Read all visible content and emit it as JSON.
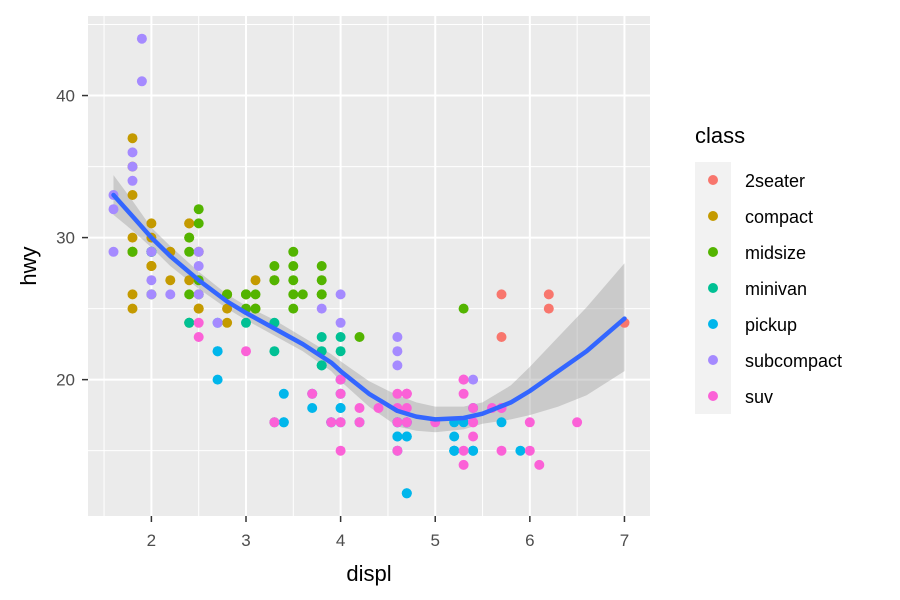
{
  "chart_data": {
    "type": "scatter",
    "xlabel": "displ",
    "ylabel": "hwy",
    "xlim": [
      1.33,
      7.27
    ],
    "ylim": [
      10.4,
      45.6
    ],
    "x_ticks": [
      2,
      3,
      4,
      5,
      6,
      7
    ],
    "y_ticks": [
      20,
      30,
      40
    ],
    "grid": true,
    "legend": {
      "title": "class",
      "placement": "right"
    },
    "series": [
      {
        "name": "2seater",
        "color": "#F8766D",
        "points": [
          [
            5.7,
            26
          ],
          [
            5.7,
            23
          ],
          [
            6.2,
            26
          ],
          [
            6.2,
            25
          ],
          [
            7.0,
            24
          ]
        ]
      },
      {
        "name": "compact",
        "color": "#C49A00",
        "points": [
          [
            1.8,
            29
          ],
          [
            1.8,
            29
          ],
          [
            2.0,
            31
          ],
          [
            2.0,
            30
          ],
          [
            2.8,
            26
          ],
          [
            2.8,
            26
          ],
          [
            3.1,
            27
          ],
          [
            1.8,
            26
          ],
          [
            1.8,
            25
          ],
          [
            2.0,
            28
          ],
          [
            2.0,
            28
          ],
          [
            2.8,
            24
          ],
          [
            2.8,
            25
          ],
          [
            3.1,
            25
          ],
          [
            2.2,
            29
          ],
          [
            2.2,
            27
          ],
          [
            2.4,
            31
          ],
          [
            2.4,
            31
          ],
          [
            3.0,
            26
          ],
          [
            3.3,
            27
          ],
          [
            1.8,
            37
          ],
          [
            1.8,
            35
          ],
          [
            1.8,
            33
          ],
          [
            2.0,
            29
          ],
          [
            2.0,
            29
          ],
          [
            2.0,
            28
          ],
          [
            2.5,
            25
          ],
          [
            2.4,
            27
          ],
          [
            2.4,
            30
          ],
          [
            2.5,
            25
          ],
          [
            2.5,
            29
          ],
          [
            1.8,
            30
          ]
        ]
      },
      {
        "name": "midsize",
        "color": "#53B400",
        "points": [
          [
            2.8,
            26
          ],
          [
            3.1,
            26
          ],
          [
            3.1,
            25
          ],
          [
            2.4,
            26
          ],
          [
            2.4,
            29
          ],
          [
            2.5,
            32
          ],
          [
            2.5,
            31
          ],
          [
            2.4,
            30
          ],
          [
            3.3,
            28
          ],
          [
            3.5,
            29
          ],
          [
            3.5,
            28
          ],
          [
            3.0,
            26
          ],
          [
            3.0,
            25
          ],
          [
            3.5,
            26
          ],
          [
            3.5,
            27
          ],
          [
            3.8,
            26
          ],
          [
            3.8,
            27
          ],
          [
            3.8,
            28
          ],
          [
            3.5,
            25
          ],
          [
            3.6,
            26
          ],
          [
            3.3,
            27
          ],
          [
            1.8,
            29
          ],
          [
            2.0,
            26
          ],
          [
            2.4,
            24
          ],
          [
            2.5,
            26
          ],
          [
            2.5,
            27
          ],
          [
            3.0,
            26
          ],
          [
            3.8,
            26
          ],
          [
            4.2,
            23
          ],
          [
            5.3,
            25
          ],
          [
            2.0,
            29
          ]
        ]
      },
      {
        "name": "minivan",
        "color": "#00C094",
        "points": [
          [
            2.4,
            24
          ],
          [
            3.0,
            24
          ],
          [
            3.3,
            22
          ],
          [
            3.3,
            24
          ],
          [
            3.8,
            22
          ],
          [
            3.8,
            21
          ],
          [
            3.8,
            23
          ],
          [
            4.0,
            23
          ],
          [
            3.3,
            17
          ],
          [
            3.8,
            21
          ],
          [
            4.0,
            22
          ]
        ]
      },
      {
        "name": "pickup",
        "color": "#00B6EB",
        "points": [
          [
            3.7,
            19
          ],
          [
            3.7,
            18
          ],
          [
            3.9,
            17
          ],
          [
            3.9,
            17
          ],
          [
            4.7,
            16
          ],
          [
            4.7,
            17
          ],
          [
            4.7,
            17
          ],
          [
            5.2,
            15
          ],
          [
            5.2,
            15
          ],
          [
            5.7,
            17
          ],
          [
            5.9,
            15
          ],
          [
            4.7,
            12
          ],
          [
            4.7,
            17
          ],
          [
            4.7,
            16
          ],
          [
            4.7,
            12
          ],
          [
            5.2,
            15
          ],
          [
            2.7,
            20
          ],
          [
            2.7,
            22
          ],
          [
            2.7,
            22
          ],
          [
            3.4,
            17
          ],
          [
            3.4,
            19
          ],
          [
            4.0,
            18
          ],
          [
            4.0,
            18
          ],
          [
            4.0,
            19
          ],
          [
            4.0,
            20
          ],
          [
            4.6,
            17
          ],
          [
            4.6,
            16
          ],
          [
            4.6,
            17
          ],
          [
            4.6,
            16
          ],
          [
            5.4,
            15
          ],
          [
            5.4,
            18
          ],
          [
            5.3,
            17
          ],
          [
            5.4,
            15
          ],
          [
            4.0,
            17
          ],
          [
            3.4,
            17
          ],
          [
            4.2,
            17
          ],
          [
            4.6,
            15
          ],
          [
            5.2,
            16
          ],
          [
            5.2,
            17
          ],
          [
            2.0,
            29
          ],
          [
            2.0,
            29
          ],
          [
            2.7,
            24
          ]
        ]
      },
      {
        "name": "subcompact",
        "color": "#A58AFF",
        "points": [
          [
            1.8,
            36
          ],
          [
            1.8,
            34
          ],
          [
            1.9,
            44
          ],
          [
            1.9,
            41
          ],
          [
            2.0,
            29
          ],
          [
            1.6,
            33
          ],
          [
            1.6,
            32
          ],
          [
            1.6,
            29
          ],
          [
            1.8,
            35
          ],
          [
            2.0,
            26
          ],
          [
            2.2,
            26
          ],
          [
            2.5,
            26
          ],
          [
            2.5,
            28
          ],
          [
            2.0,
            27
          ],
          [
            2.7,
            24
          ],
          [
            3.8,
            25
          ],
          [
            4.0,
            26
          ],
          [
            4.0,
            24
          ],
          [
            4.6,
            23
          ],
          [
            4.6,
            22
          ],
          [
            4.6,
            21
          ],
          [
            5.4,
            20
          ],
          [
            2.5,
            29
          ]
        ]
      },
      {
        "name": "suv",
        "color": "#FB61D7",
        "points": [
          [
            5.3,
            20
          ],
          [
            5.3,
            15
          ],
          [
            5.3,
            14
          ],
          [
            5.7,
            18
          ],
          [
            6.0,
            17
          ],
          [
            6.5,
            17
          ],
          [
            5.3,
            20
          ],
          [
            5.7,
            18
          ],
          [
            6.1,
            14
          ],
          [
            6.0,
            15
          ],
          [
            4.7,
            19
          ],
          [
            4.7,
            19
          ],
          [
            4.0,
            15
          ],
          [
            4.0,
            17
          ],
          [
            4.6,
            17
          ],
          [
            4.7,
            18
          ],
          [
            5.4,
            16
          ],
          [
            4.2,
            18
          ],
          [
            4.2,
            17
          ],
          [
            3.9,
            17
          ],
          [
            4.4,
            18
          ],
          [
            4.7,
            17
          ],
          [
            4.6,
            19
          ],
          [
            4.6,
            15
          ],
          [
            5.0,
            17
          ],
          [
            5.4,
            17
          ],
          [
            4.0,
            19
          ],
          [
            4.0,
            20
          ],
          [
            3.3,
            17
          ],
          [
            3.0,
            22
          ],
          [
            2.5,
            24
          ],
          [
            2.5,
            23
          ],
          [
            3.7,
            19
          ],
          [
            4.7,
            17
          ],
          [
            5.7,
            15
          ],
          [
            4.6,
            18
          ],
          [
            4.7,
            19
          ],
          [
            5.4,
            17
          ],
          [
            5.4,
            18
          ],
          [
            5.3,
            19
          ],
          [
            5.6,
            18
          ]
        ]
      }
    ],
    "smooth": {
      "color": "#3366FF",
      "x": [
        1.6,
        1.8,
        2.0,
        2.2,
        2.5,
        2.8,
        3.0,
        3.3,
        3.6,
        3.9,
        4.0,
        4.3,
        4.6,
        4.8,
        5.0,
        5.3,
        5.5,
        5.8,
        6.0,
        6.3,
        6.6,
        7.0
      ],
      "y": [
        33.0,
        31.5,
        30.0,
        28.7,
        27.0,
        25.5,
        24.7,
        23.6,
        22.5,
        21.2,
        20.6,
        19.0,
        17.8,
        17.4,
        17.2,
        17.3,
        17.6,
        18.4,
        19.2,
        20.6,
        22.0,
        24.3
      ],
      "lower": [
        31.6,
        30.5,
        29.3,
        28.0,
        26.4,
        25.0,
        24.2,
        23.1,
        22.0,
        20.6,
        19.9,
        18.1,
        16.7,
        16.4,
        16.3,
        16.5,
        16.9,
        17.2,
        17.5,
        18.1,
        18.9,
        20.6
      ],
      "upper": [
        34.4,
        32.6,
        30.7,
        29.4,
        27.6,
        26.0,
        25.2,
        24.2,
        23.0,
        21.8,
        21.3,
        19.9,
        18.9,
        18.4,
        18.1,
        18.1,
        18.4,
        19.6,
        20.9,
        23.0,
        25.1,
        28.2
      ]
    }
  }
}
